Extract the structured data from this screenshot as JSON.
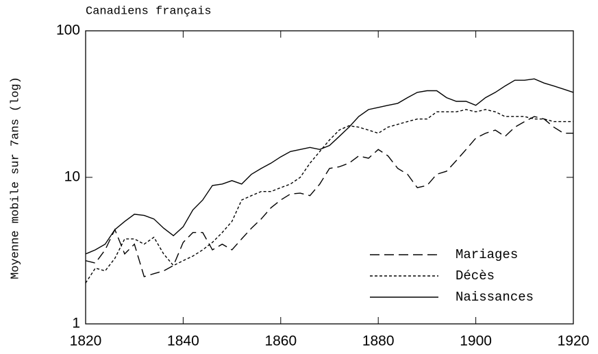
{
  "chart_data": {
    "type": "line",
    "title": "Canadiens français",
    "y_label": "Moyenne mobile sur 7ans (log)",
    "log_y": true,
    "xlim": [
      1820,
      1920
    ],
    "xticks": [
      1820,
      1840,
      1860,
      1880,
      1900,
      1920
    ],
    "ylim": [
      1,
      100
    ],
    "yticks": [
      1,
      10,
      100
    ],
    "legend": "lower right",
    "x": [
      1820,
      1822,
      1824,
      1826,
      1828,
      1830,
      1832,
      1834,
      1836,
      1838,
      1840,
      1842,
      1844,
      1846,
      1848,
      1850,
      1852,
      1854,
      1856,
      1858,
      1860,
      1862,
      1864,
      1866,
      1868,
      1870,
      1872,
      1874,
      1876,
      1878,
      1880,
      1882,
      1884,
      1886,
      1888,
      1890,
      1892,
      1894,
      1896,
      1898,
      1900,
      1902,
      1904,
      1906,
      1908,
      1910,
      1912,
      1914,
      1916,
      1918,
      1920
    ],
    "series": [
      {
        "name": "Mariages",
        "color": "#000000",
        "style": "dashed",
        "values": [
          2.7,
          2.6,
          3.2,
          4.4,
          3.0,
          3.5,
          2.1,
          2.2,
          2.3,
          2.5,
          3.6,
          4.2,
          4.2,
          3.2,
          3.5,
          3.2,
          3.8,
          4.5,
          5.2,
          6.2,
          7.0,
          7.7,
          7.8,
          7.5,
          9.0,
          11.5,
          11.8,
          12.5,
          14,
          13.5,
          15.5,
          14,
          11.5,
          10.5,
          8.5,
          8.8,
          10.5,
          11,
          13,
          15.5,
          18.5,
          20,
          21,
          19,
          22,
          24,
          26,
          25,
          22,
          20,
          20
        ]
      },
      {
        "name": "Décès",
        "color": "#000000",
        "style": "dotted",
        "values": [
          1.9,
          2.4,
          2.3,
          2.8,
          3.8,
          3.8,
          3.5,
          3.9,
          3.0,
          2.5,
          2.7,
          2.9,
          3.2,
          3.6,
          4.2,
          5.0,
          7.0,
          7.5,
          8.0,
          8.0,
          8.5,
          9.0,
          10.0,
          12.5,
          15.0,
          18,
          21,
          22.5,
          22,
          21,
          20,
          22,
          23,
          24,
          25,
          25,
          28,
          28,
          28,
          29,
          28,
          29,
          28,
          26,
          26,
          26,
          25,
          25,
          24,
          24,
          24
        ]
      },
      {
        "name": "Naissances",
        "color": "#000000",
        "style": "solid",
        "values": [
          3.0,
          3.2,
          3.5,
          4.4,
          5.0,
          5.6,
          5.5,
          5.2,
          4.5,
          4.0,
          4.6,
          6.0,
          7.0,
          8.8,
          9.0,
          9.5,
          9.0,
          10.5,
          11.5,
          12.5,
          13.8,
          15.0,
          15.5,
          16.0,
          15.5,
          16.5,
          19.0,
          22.0,
          26.0,
          29.0,
          30.0,
          31.0,
          32.0,
          35.0,
          38.0,
          39.0,
          39.0,
          35.0,
          33.0,
          33.0,
          31.0,
          35.0,
          38.0,
          42.0,
          46.0,
          46.0,
          47.0,
          44.0,
          42.0,
          40.0,
          38.0
        ]
      }
    ]
  }
}
